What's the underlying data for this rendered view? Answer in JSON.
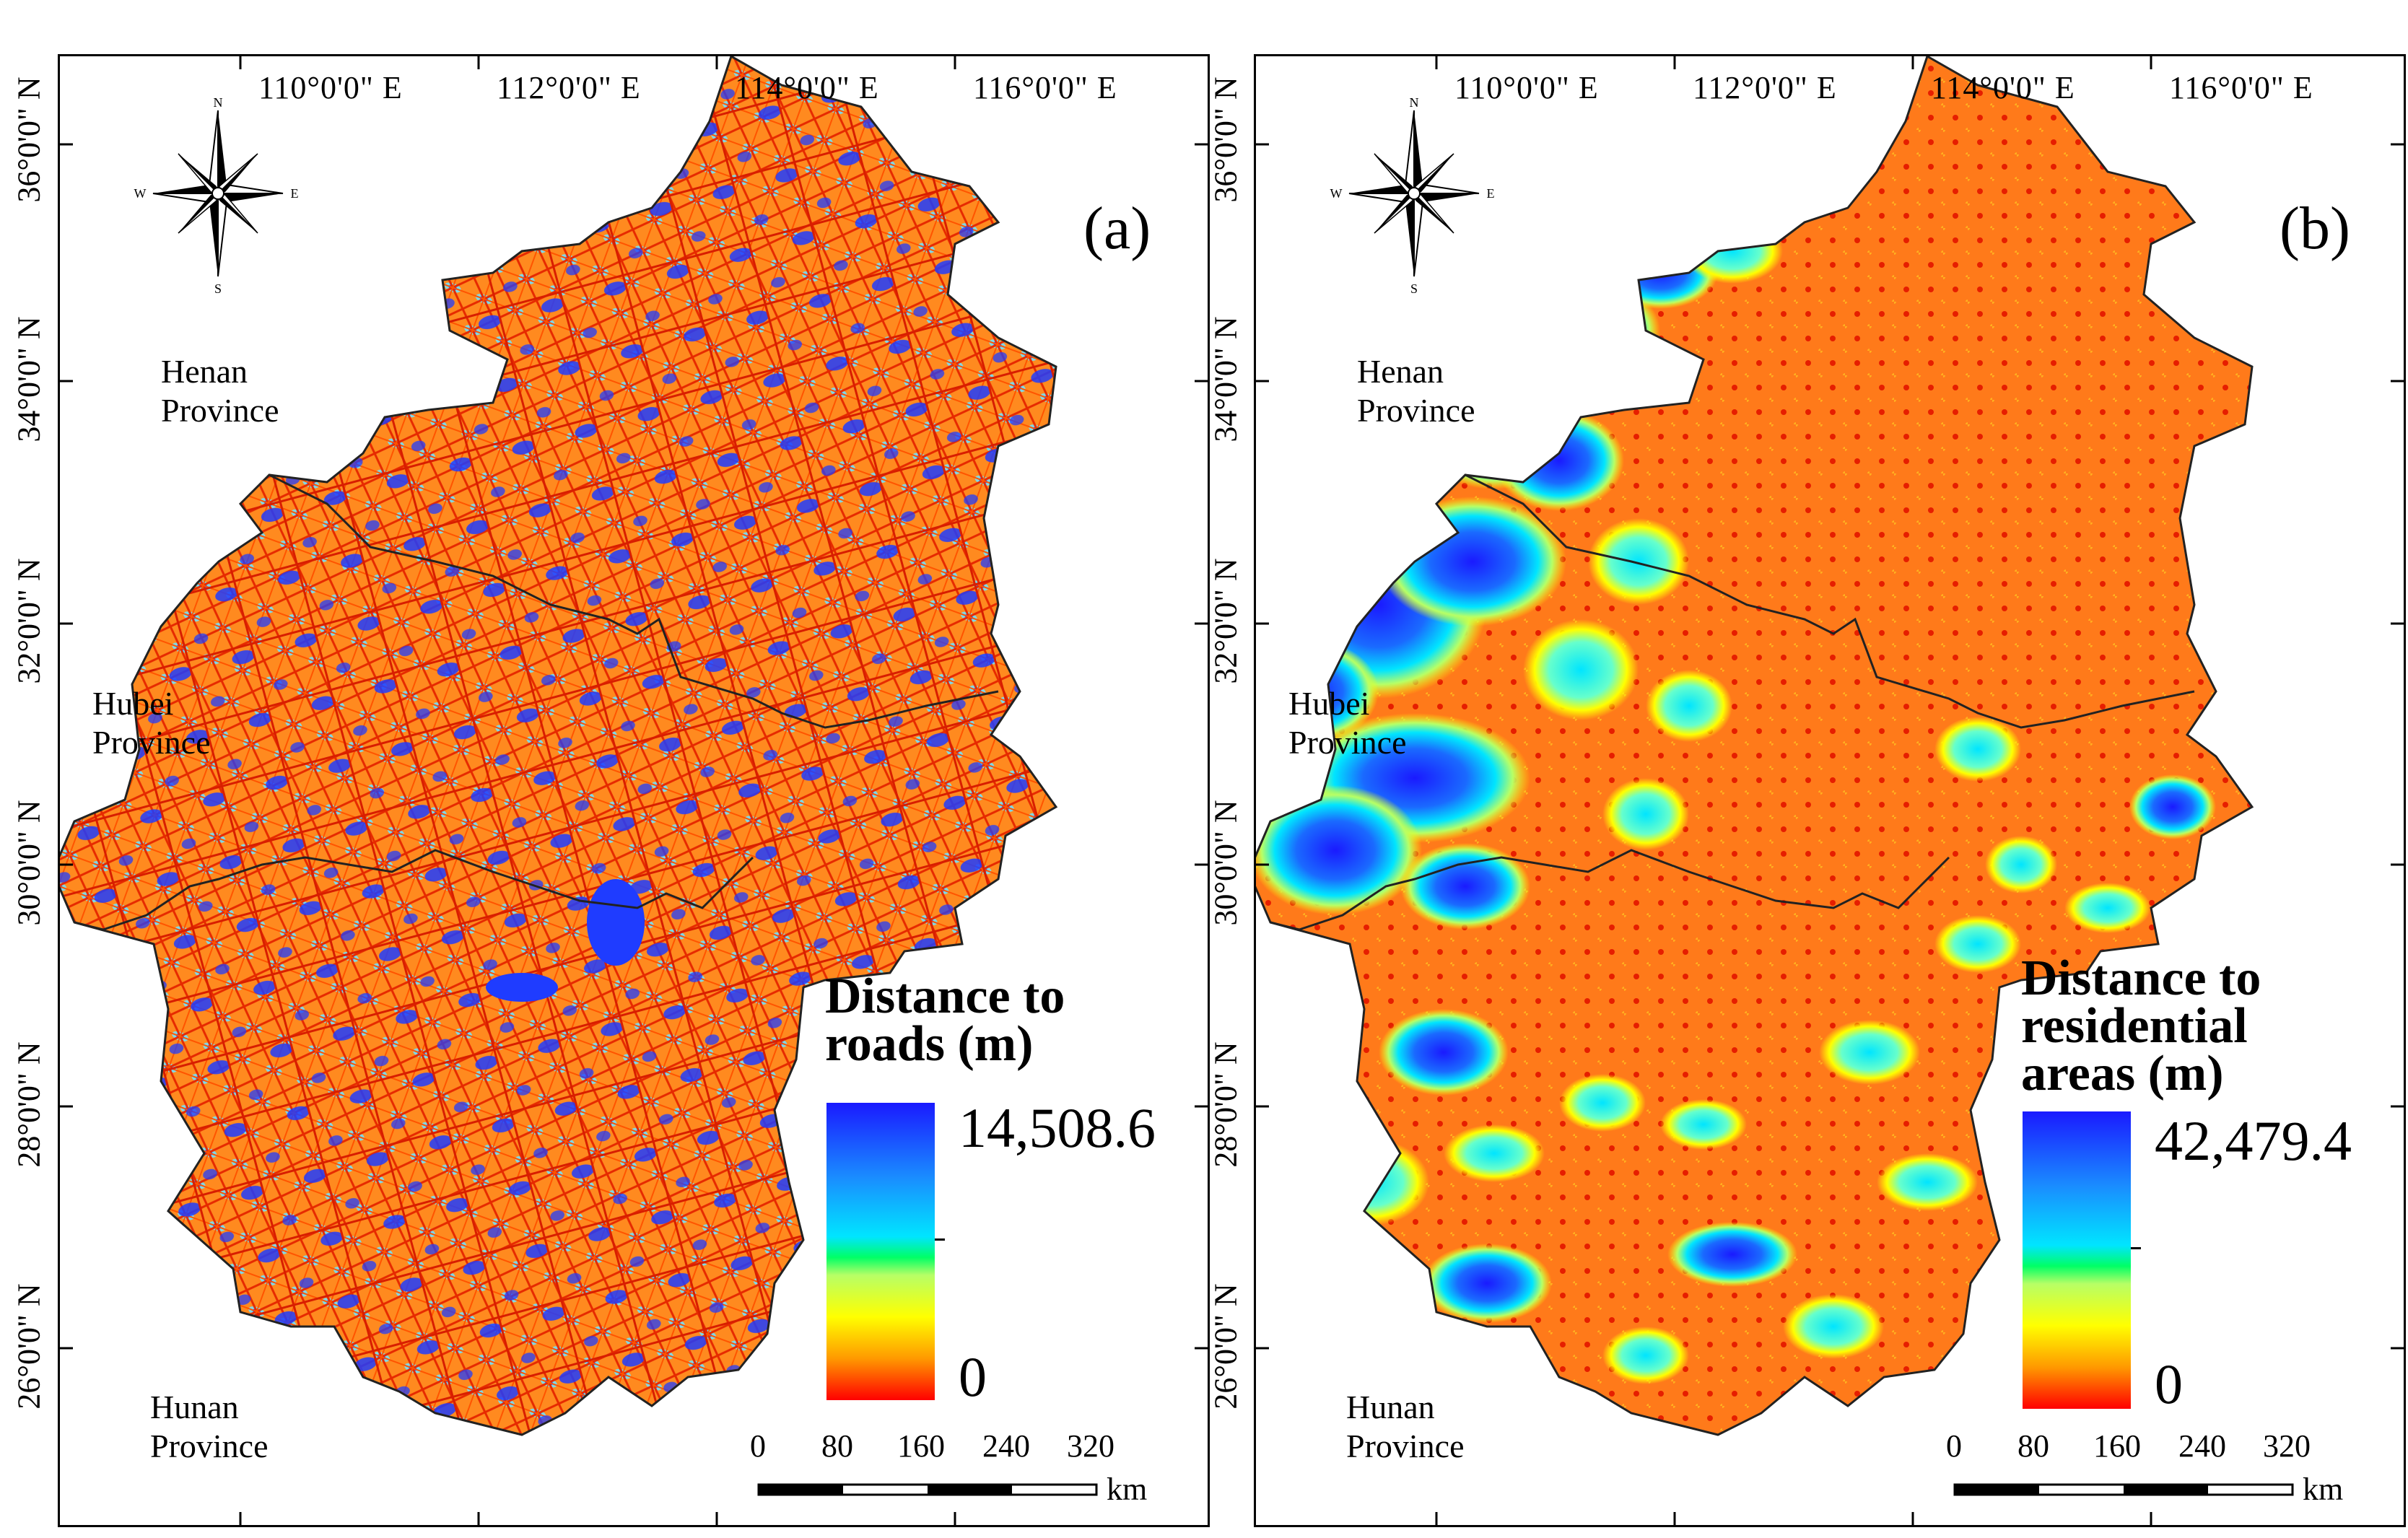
{
  "axes": {
    "longitude_labels": [
      "110°0'0\" E",
      "112°0'0\" E",
      "114°0'0\" E",
      "116°0'0\" E"
    ],
    "latitude_labels": [
      "36°0'0\" N",
      "34°0'0\" N",
      "32°0'0\" N",
      "30°0'0\" N",
      "28°0'0\" N",
      "26°0'0\" N"
    ]
  },
  "panels": [
    {
      "panel_label": "(a)",
      "legend_title": "Distance to roads (m)",
      "legend_line1": "Distance to",
      "legend_line2": "roads (m)",
      "legend_line3": "",
      "legend_max": "14,508.6",
      "legend_min": "0",
      "theme": "roads"
    },
    {
      "panel_label": "(b)",
      "legend_title": "Distance to residential areas (m)",
      "legend_line1": "Distance to",
      "legend_line2": "residential",
      "legend_line3": "areas (m)",
      "legend_max": "42,479.4",
      "legend_min": "0",
      "theme": "residential"
    }
  ],
  "provinces": {
    "henan": [
      "Henan",
      "Province"
    ],
    "hubei": [
      "Hubei",
      "Province"
    ],
    "hunan": [
      "Hunan",
      "Province"
    ]
  },
  "compass": {
    "n": "N",
    "s": "S",
    "e": "E",
    "w": "W"
  },
  "scalebar": {
    "ticks": [
      "0",
      "80",
      "160",
      "240",
      "320"
    ],
    "unit": "km"
  },
  "colors": {
    "ramp_high": "#1a1aff",
    "ramp_mid_high": "#00e5ff",
    "ramp_mid": "#00ff66",
    "ramp_mid_low": "#ffff00",
    "ramp_low": "#ff0000",
    "map_base": "#ff7a1a"
  }
}
